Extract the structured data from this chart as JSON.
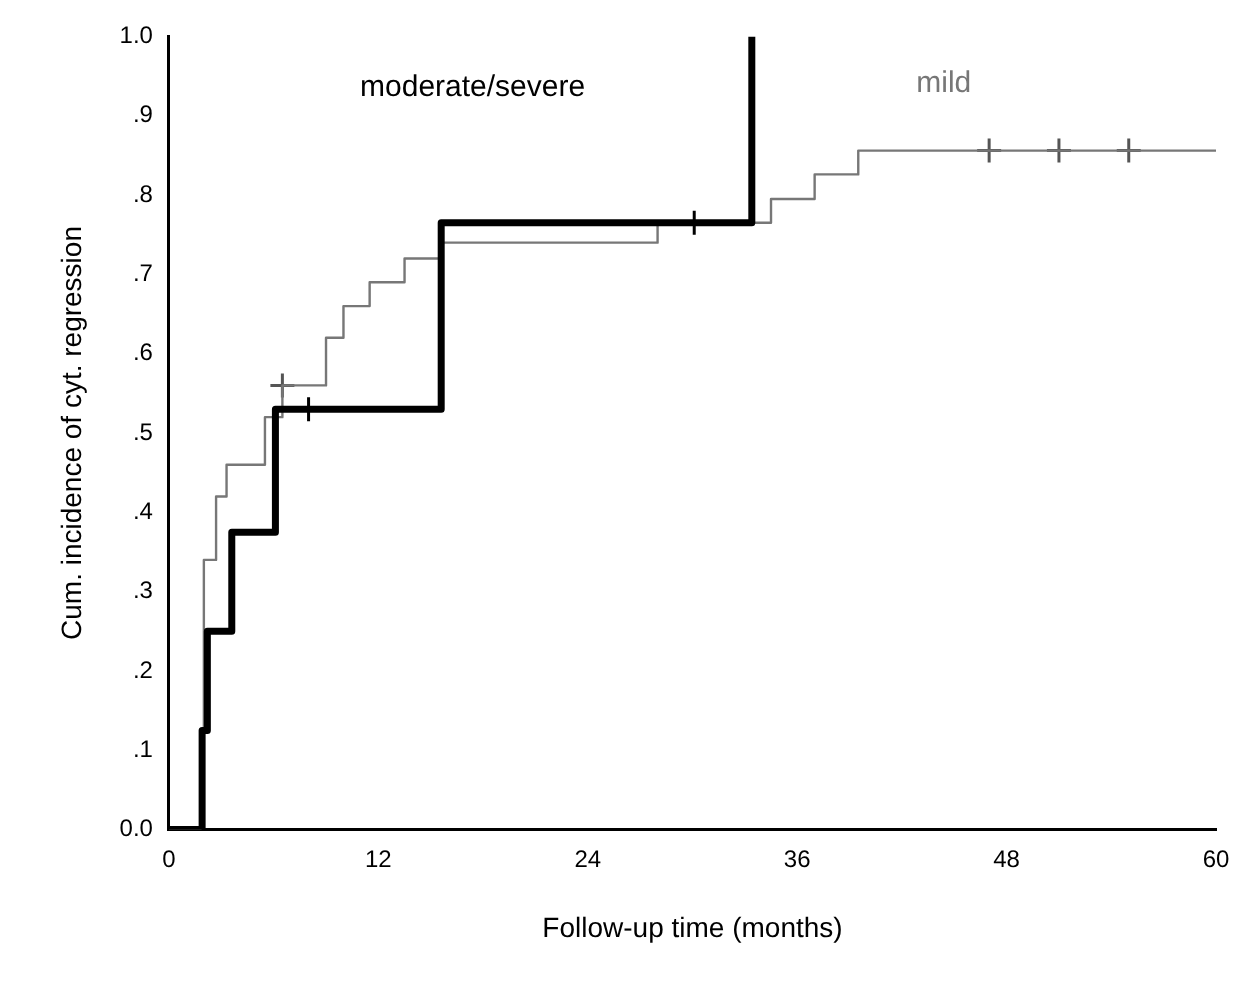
{
  "chart_data": {
    "type": "step",
    "xlabel": "Follow-up time (months)",
    "ylabel": "Cum. incidence of cyt. regression",
    "xlim": [
      0,
      60
    ],
    "xticks": [
      0,
      12,
      24,
      36,
      48,
      60
    ],
    "ylim": [
      0,
      1
    ],
    "yticks": [
      {
        "value": 0,
        "label": "0.0"
      },
      {
        "value": 0.1,
        "label": ".1"
      },
      {
        "value": 0.2,
        "label": ".2"
      },
      {
        "value": 0.3,
        "label": ".3"
      },
      {
        "value": 0.4,
        "label": ".4"
      },
      {
        "value": 0.5,
        "label": ".5"
      },
      {
        "value": 0.6,
        "label": ".6"
      },
      {
        "value": 0.7,
        "label": ".7"
      },
      {
        "value": 0.8,
        "label": ".8"
      },
      {
        "value": 0.9,
        "label": ".9"
      },
      {
        "value": 1,
        "label": "1.0"
      }
    ],
    "grid": false,
    "legend": false,
    "series": [
      {
        "name": "moderate/severe",
        "color": "#000000",
        "x": [
          0,
          1.9,
          2.2,
          3.6,
          6.1,
          15.6,
          33.4
        ],
        "values": [
          0,
          0.125,
          0.25,
          0.375,
          0.53,
          0.765,
          1
        ]
      },
      {
        "name": "mild",
        "color": "#777777",
        "x": [
          0,
          1.8,
          2.0,
          2.7,
          3.3,
          5.5,
          6.5,
          9,
          10,
          11.5,
          13.5,
          15.5,
          28,
          34.5,
          37,
          39.5,
          60
        ],
        "values": [
          0,
          0.12,
          0.34,
          0.42,
          0.46,
          0.52,
          0.56,
          0.62,
          0.66,
          0.69,
          0.72,
          0.74,
          0.765,
          0.795,
          0.826,
          0.856,
          0.856
        ]
      },
      {
        "type": "scatter",
        "marker": "cross",
        "color": "#000000",
        "x": [
          8,
          30.1
        ],
        "values": [
          0.53,
          0.765
        ]
      },
      {
        "type": "scatter",
        "marker": "cross",
        "color": "#555555",
        "x": [
          6.5,
          47,
          51,
          55
        ],
        "values": [
          0.56,
          0.856,
          0.856,
          0.856
        ]
      }
    ]
  }
}
